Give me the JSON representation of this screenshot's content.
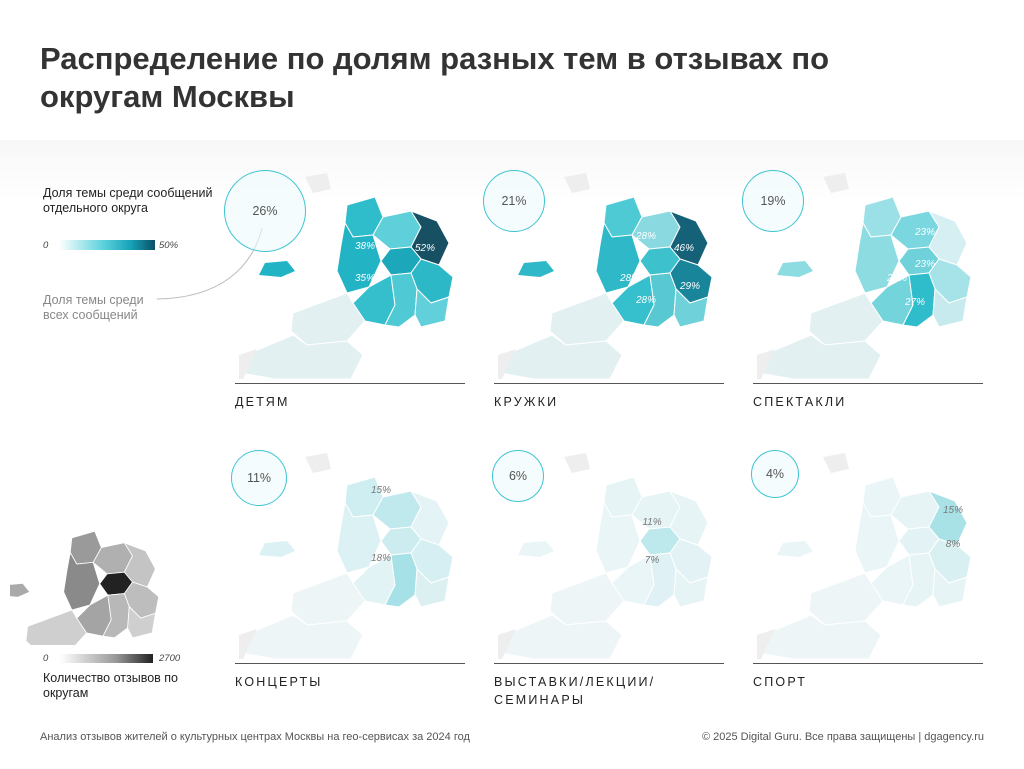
{
  "title": "Распределение по долям разных тем в отзывах по округам Москвы",
  "legend": {
    "share_district_title": "Доля темы среди сообщений отдельного округа",
    "share_min": "0",
    "share_max": "50%",
    "share_all_title": "Доля темы среди всех сообщений",
    "count_title": "Количество отзывов по округам",
    "count_min": "0",
    "count_max": "2700"
  },
  "colors": {
    "accent": "#3fc4d2",
    "scale_low": "#eaf5f7",
    "scale_high": "#0b4f66",
    "gray_high": "#222222"
  },
  "chart_data": [
    {
      "type": "heatmap",
      "topic": "ДЕТЯМ",
      "overall_share": "26%",
      "district_labels": [
        "38%",
        "52%",
        "35%"
      ],
      "district_shares": [
        38,
        52,
        35
      ]
    },
    {
      "type": "heatmap",
      "topic": "КРУЖКИ",
      "overall_share": "21%",
      "district_labels": [
        "28%",
        "46%",
        "28%",
        "29%",
        "28%"
      ],
      "district_shares": [
        28,
        46,
        28,
        29,
        28
      ]
    },
    {
      "type": "heatmap",
      "topic": "СПЕКТАКЛИ",
      "overall_share": "19%",
      "district_labels": [
        "23%",
        "23%",
        "23%",
        "27%"
      ],
      "district_shares": [
        23,
        23,
        23,
        27
      ]
    },
    {
      "type": "heatmap",
      "topic": "КОНЦЕРТЫ",
      "overall_share": "11%",
      "district_labels": [
        "15%",
        "18%"
      ],
      "district_shares": [
        15,
        18
      ]
    },
    {
      "type": "heatmap",
      "topic": "ВЫСТАВКИ/ЛЕКЦИИ/ СЕМИНАРЫ",
      "overall_share": "6%",
      "district_labels": [
        "11%",
        "7%"
      ],
      "district_shares": [
        11,
        7
      ]
    },
    {
      "type": "heatmap",
      "topic": "СПОРТ",
      "overall_share": "4%",
      "district_labels": [
        "15%",
        "8%"
      ],
      "district_shares": [
        15,
        8
      ]
    }
  ],
  "footer": {
    "source": "Анализ отзывов жителей о культурных центрах Москвы на гео-сервисах за 2024 год",
    "copyright": "© 2025 Digital Guru. Все права защищены | dgagency.ru"
  }
}
